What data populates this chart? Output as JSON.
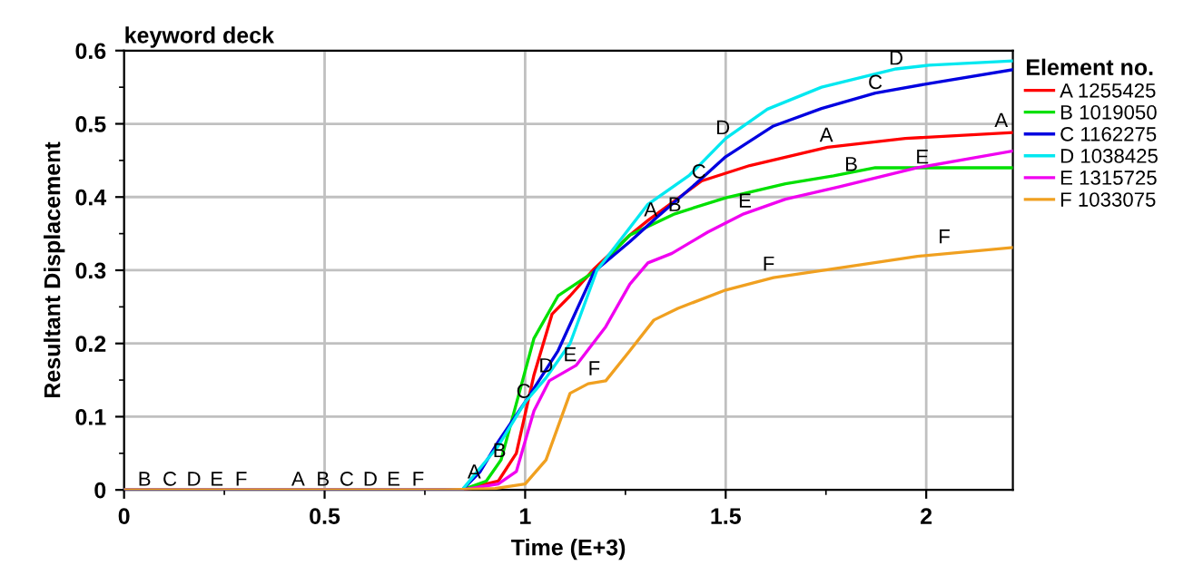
{
  "chart_data": {
    "type": "line",
    "title": "keyword deck",
    "xlabel": "Time (E+3)",
    "ylabel": "Resultant Displacement",
    "legend_title": "Element no.",
    "legend": "top right",
    "grid": true,
    "marker": "none",
    "line_style": "solid",
    "xlim": [
      0,
      2.216
    ],
    "ylim": [
      0,
      0.6
    ],
    "xticks": [
      0,
      {
        "value": 0.25,
        "label": null
      },
      0.5,
      {
        "value": 0.75,
        "label": null
      },
      1,
      {
        "value": 1.25,
        "label": null
      },
      1.5,
      {
        "value": 1.75,
        "label": null
      },
      2
    ],
    "yticks": [
      0,
      {
        "value": 0.05,
        "label": null
      },
      0.1,
      {
        "value": 0.15,
        "label": null
      },
      0.2,
      {
        "value": 0.25,
        "label": null
      },
      0.3,
      {
        "value": 0.35,
        "label": null
      },
      0.4,
      {
        "value": 0.45,
        "label": null
      },
      0.5,
      {
        "value": 0.55,
        "label": null
      },
      0.6
    ],
    "series": [
      {
        "name": "A 1255425",
        "color": "#ff0000",
        "x": [
          0,
          0.843,
          0.933,
          0.978,
          1.022,
          1.067,
          1.112,
          1.172,
          1.261,
          1.306,
          1.44,
          1.56,
          1.754,
          1.948,
          2.216
        ],
        "values": [
          0,
          0,
          0.012,
          0.05,
          0.157,
          0.24,
          0.265,
          0.302,
          0.348,
          0.368,
          0.422,
          0.443,
          0.468,
          0.48,
          0.488
        ]
      },
      {
        "name": "B 1019050",
        "color": "#00e000",
        "x": [
          0,
          0.843,
          0.903,
          0.94,
          0.985,
          1.022,
          1.082,
          1.172,
          1.261,
          1.373,
          1.5,
          1.649,
          1.769,
          1.873,
          2.007,
          2.216
        ],
        "values": [
          0,
          0,
          0.012,
          0.041,
          0.132,
          0.207,
          0.265,
          0.298,
          0.348,
          0.377,
          0.399,
          0.418,
          0.429,
          0.44,
          0.44,
          0.44
        ]
      },
      {
        "name": "C 1162275",
        "color": "#0000e0",
        "x": [
          0,
          0.843,
          0.888,
          0.933,
          1,
          1.082,
          1.172,
          1.261,
          1.328,
          1.425,
          1.5,
          1.619,
          1.739,
          1.873,
          2.007,
          2.216
        ],
        "values": [
          0,
          0,
          0.025,
          0.066,
          0.12,
          0.19,
          0.298,
          0.339,
          0.372,
          0.418,
          0.455,
          0.497,
          0.521,
          0.542,
          0.555,
          0.574
        ]
      },
      {
        "name": "D 1038425",
        "color": "#00e8f0",
        "x": [
          0,
          0.843,
          0.933,
          1,
          1.052,
          1.112,
          1.179,
          1.306,
          1.41,
          1.5,
          1.604,
          1.739,
          1.925,
          2.007,
          2.216
        ],
        "values": [
          0,
          0,
          0.06,
          0.12,
          0.153,
          0.2,
          0.3,
          0.39,
          0.43,
          0.48,
          0.52,
          0.55,
          0.575,
          0.58,
          0.586
        ]
      },
      {
        "name": "E 1315725",
        "color": "#f000f0",
        "x": [
          0,
          0.843,
          0.933,
          0.978,
          1.022,
          1.06,
          1.127,
          1.201,
          1.261,
          1.306,
          1.366,
          1.455,
          1.545,
          1.649,
          1.784,
          1.978,
          2.216
        ],
        "values": [
          0,
          0,
          0.008,
          0.025,
          0.108,
          0.149,
          0.17,
          0.223,
          0.281,
          0.31,
          0.323,
          0.352,
          0.377,
          0.397,
          0.414,
          0.44,
          0.463
        ]
      },
      {
        "name": "F 1033075",
        "color": "#f0a020",
        "x": [
          0,
          0.8,
          0.925,
          1,
          1.052,
          1.112,
          1.157,
          1.201,
          1.261,
          1.321,
          1.381,
          1.5,
          1.619,
          1.769,
          1.978,
          2.216
        ],
        "values": [
          0,
          0,
          0.002,
          0.008,
          0.041,
          0.132,
          0.145,
          0.149,
          0.19,
          0.232,
          0.248,
          0.273,
          0.29,
          0.302,
          0.319,
          0.331
        ]
      }
    ],
    "annotations": [
      {
        "text": "A",
        "x": 0.873,
        "y": 0.01
      },
      {
        "text": "B",
        "x": 0.936,
        "y": 0.039
      },
      {
        "text": "C",
        "x": 0.996,
        "y": 0.12
      },
      {
        "text": "D",
        "x": 1.052,
        "y": 0.155
      },
      {
        "text": "E",
        "x": 1.112,
        "y": 0.17
      },
      {
        "text": "F",
        "x": 1.172,
        "y": 0.151
      },
      {
        "text": "A",
        "x": 1.313,
        "y": 0.368
      },
      {
        "text": "B",
        "x": 1.373,
        "y": 0.375
      },
      {
        "text": "C",
        "x": 1.433,
        "y": 0.42
      },
      {
        "text": "D",
        "x": 1.493,
        "y": 0.48
      },
      {
        "text": "E",
        "x": 1.548,
        "y": 0.38
      },
      {
        "text": "F",
        "x": 1.607,
        "y": 0.294
      },
      {
        "text": "A",
        "x": 1.751,
        "y": 0.47
      },
      {
        "text": "B",
        "x": 1.813,
        "y": 0.43
      },
      {
        "text": "C",
        "x": 1.873,
        "y": 0.542
      },
      {
        "text": "D",
        "x": 1.925,
        "y": 0.575
      },
      {
        "text": "E",
        "x": 1.99,
        "y": 0.44
      },
      {
        "text": "F",
        "x": 2.045,
        "y": 0.331
      },
      {
        "text": "A",
        "x": 2.187,
        "y": 0.49
      },
      {
        "text": "B",
        "x": 0.051,
        "y": 0
      },
      {
        "text": "C",
        "x": 0.114,
        "y": 0
      },
      {
        "text": "D",
        "x": 0.174,
        "y": 0
      },
      {
        "text": "E",
        "x": 0.231,
        "y": 0
      },
      {
        "text": "F",
        "x": 0.292,
        "y": 0
      },
      {
        "text": "A",
        "x": 0.434,
        "y": 0
      },
      {
        "text": "B",
        "x": 0.496,
        "y": 0
      },
      {
        "text": "C",
        "x": 0.555,
        "y": 0
      },
      {
        "text": "D",
        "x": 0.614,
        "y": 0
      },
      {
        "text": "E",
        "x": 0.672,
        "y": 0
      },
      {
        "text": "F",
        "x": 0.733,
        "y": 0
      }
    ]
  }
}
